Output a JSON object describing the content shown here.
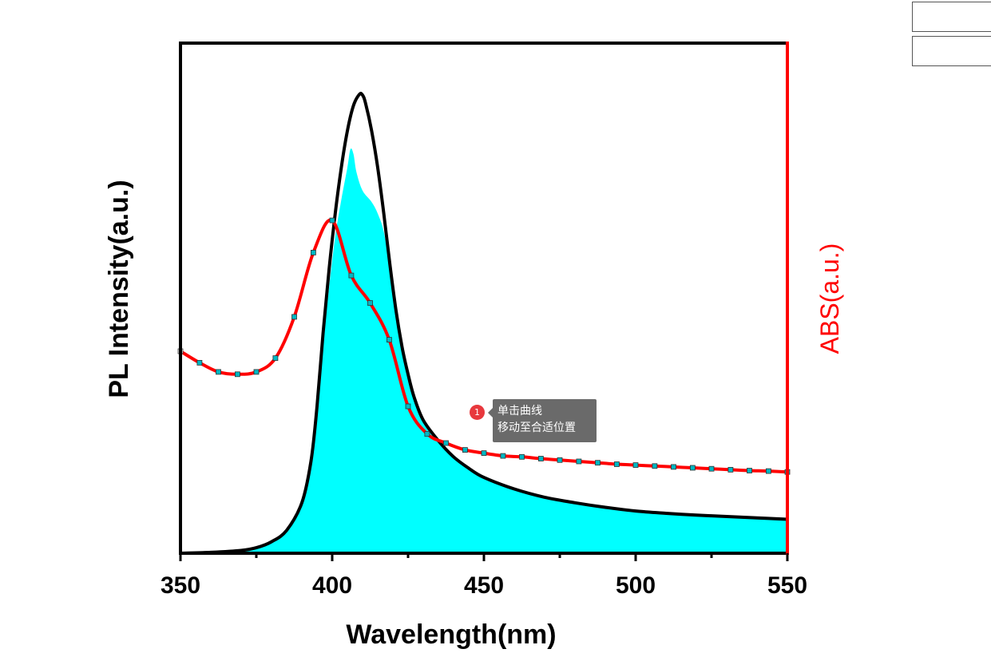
{
  "chart_data": {
    "type": "area",
    "xlabel": "Wavelength(nm)",
    "ylabel_left": "PL Intensity(a.u.)",
    "ylabel_right": "ABS(a.u.)",
    "xlim": [
      350,
      550
    ],
    "ylim": [
      0,
      1
    ],
    "x_ticks": [
      350,
      400,
      450,
      500,
      550
    ],
    "x_tick_labels": [
      "350",
      "400",
      "450",
      "500",
      "550"
    ],
    "grid": false,
    "colors": {
      "pl_line": "#000000",
      "pl_fill": "#00ffff",
      "abs_line": "#ff0000",
      "abs_marker": "#00b7c3",
      "right_axis": "#ff0000"
    },
    "series": [
      {
        "name": "",
        "role": "pl-outline",
        "x": [
          350,
          360,
          370,
          375,
          380,
          385,
          390,
          393,
          395,
          397,
          399,
          401,
          403,
          405,
          407,
          409,
          410,
          411,
          413,
          415,
          417,
          419,
          421,
          423,
          425,
          427,
          430,
          435,
          440,
          445,
          450,
          460,
          470,
          480,
          490,
          500,
          510,
          520,
          530,
          540,
          550
        ],
        "y": [
          0.0,
          0.002,
          0.006,
          0.012,
          0.025,
          0.05,
          0.11,
          0.2,
          0.32,
          0.48,
          0.62,
          0.74,
          0.84,
          0.92,
          0.975,
          1.0,
          0.998,
          0.98,
          0.92,
          0.84,
          0.74,
          0.63,
          0.53,
          0.45,
          0.39,
          0.34,
          0.29,
          0.245,
          0.21,
          0.185,
          0.165,
          0.14,
          0.122,
          0.11,
          0.1,
          0.092,
          0.087,
          0.083,
          0.08,
          0.077,
          0.074
        ]
      },
      {
        "name": "",
        "role": "pl-fill",
        "x": [
          350,
          360,
          370,
          375,
          380,
          385,
          390,
          393,
          395,
          397,
          399,
          401,
          403,
          405,
          406,
          407,
          408,
          410,
          413,
          415,
          417,
          419,
          421,
          423,
          425,
          427,
          430,
          435,
          440,
          445,
          450,
          460,
          470,
          480,
          490,
          500,
          510,
          520,
          530,
          540,
          550
        ],
        "y": [
          0.0,
          0.002,
          0.006,
          0.012,
          0.025,
          0.05,
          0.11,
          0.2,
          0.32,
          0.46,
          0.58,
          0.69,
          0.77,
          0.84,
          0.88,
          0.87,
          0.83,
          0.79,
          0.765,
          0.74,
          0.7,
          0.62,
          0.52,
          0.45,
          0.39,
          0.34,
          0.29,
          0.245,
          0.21,
          0.185,
          0.165,
          0.14,
          0.122,
          0.11,
          0.1,
          0.092,
          0.087,
          0.083,
          0.08,
          0.077,
          0.074
        ]
      },
      {
        "name": "",
        "role": "abs",
        "x": [
          350,
          356.3,
          362.5,
          368.8,
          375,
          381.3,
          387.5,
          393.8,
          400,
          406.3,
          412.5,
          418.8,
          425,
          431.3,
          437.5,
          443.8,
          450,
          456.3,
          462.5,
          468.8,
          475,
          481.3,
          487.5,
          493.8,
          500,
          506.3,
          512.5,
          518.8,
          525,
          531.3,
          537.5,
          543.8,
          550
        ],
        "y": [
          0.44,
          0.415,
          0.395,
          0.39,
          0.395,
          0.425,
          0.515,
          0.655,
          0.725,
          0.605,
          0.545,
          0.465,
          0.32,
          0.26,
          0.24,
          0.225,
          0.218,
          0.212,
          0.21,
          0.206,
          0.203,
          0.2,
          0.197,
          0.194,
          0.192,
          0.19,
          0.188,
          0.186,
          0.184,
          0.182,
          0.18,
          0.179,
          0.177
        ]
      }
    ]
  },
  "tooltip": {
    "badge": "1",
    "line1": "单击曲线",
    "line2": "移动至合适位置"
  }
}
